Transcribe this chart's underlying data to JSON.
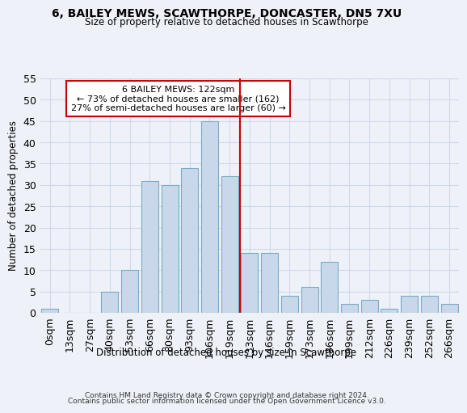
{
  "title1": "6, BAILEY MEWS, SCAWTHORPE, DONCASTER, DN5 7XU",
  "title2": "Size of property relative to detached houses in Scawthorpe",
  "xlabel": "Distribution of detached houses by size in Scawthorpe",
  "ylabel": "Number of detached properties",
  "footer1": "Contains HM Land Registry data © Crown copyright and database right 2024.",
  "footer2": "Contains public sector information licensed under the Open Government Licence v3.0.",
  "annotation_title": "6 BAILEY MEWS: 122sqm",
  "annotation_line1": "← 73% of detached houses are smaller (162)",
  "annotation_line2": "27% of semi-detached houses are larger (60) →",
  "bar_color": "#c8d8ea",
  "bar_edge_color": "#7aaac8",
  "vline_color": "#cc0000",
  "bg_color": "#eef2f8",
  "grid_color": "#d0d8e8",
  "categories": [
    "0sqm",
    "13sqm",
    "27sqm",
    "40sqm",
    "53sqm",
    "66sqm",
    "80sqm",
    "93sqm",
    "106sqm",
    "119sqm",
    "133sqm",
    "146sqm",
    "159sqm",
    "173sqm",
    "186sqm",
    "199sqm",
    "212sqm",
    "226sqm",
    "239sqm",
    "252sqm",
    "266sqm"
  ],
  "values": [
    1,
    0,
    0,
    5,
    10,
    31,
    30,
    34,
    45,
    32,
    14,
    14,
    4,
    6,
    12,
    2,
    3,
    1,
    4,
    4,
    2
  ],
  "ylim": [
    0,
    55
  ],
  "yticks": [
    0,
    5,
    10,
    15,
    20,
    25,
    30,
    35,
    40,
    45,
    50,
    55
  ],
  "vline_x": 9.5
}
